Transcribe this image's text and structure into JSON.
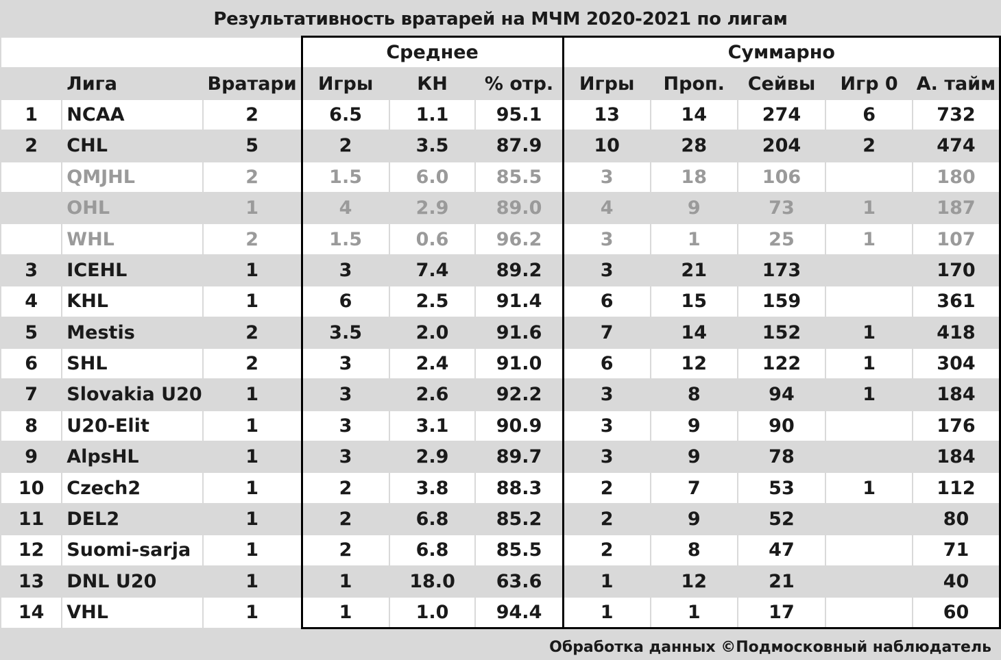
{
  "title": "Результативность вратарей на МЧМ 2020-2021  по лигам",
  "footer": "Обработка данных ©Подмосковный наблюдатель",
  "group_headers": {
    "avg": "Среднее",
    "sum": "Суммарно"
  },
  "columns": [
    "",
    "Лига",
    "Вратари",
    "Игры",
    "КН",
    "% отр.",
    "Игры",
    "Проп.",
    "Сейвы",
    "Игр 0",
    "А. тайм"
  ],
  "rows": [
    {
      "cells": [
        "1",
        "NCAA",
        "2",
        "6.5",
        "1.1",
        "95.1",
        "13",
        "14",
        "274",
        "6",
        "732"
      ],
      "muted": false
    },
    {
      "cells": [
        "2",
        "CHL",
        "5",
        "2",
        "3.5",
        "87.9",
        "10",
        "28",
        "204",
        "2",
        "474"
      ],
      "muted": false
    },
    {
      "cells": [
        "",
        "QMJHL",
        "2",
        "1.5",
        "6.0",
        "85.5",
        "3",
        "18",
        "106",
        "",
        "180"
      ],
      "muted": true
    },
    {
      "cells": [
        "",
        "OHL",
        "1",
        "4",
        "2.9",
        "89.0",
        "4",
        "9",
        "73",
        "1",
        "187"
      ],
      "muted": true
    },
    {
      "cells": [
        "",
        "WHL",
        "2",
        "1.5",
        "0.6",
        "96.2",
        "3",
        "1",
        "25",
        "1",
        "107"
      ],
      "muted": true
    },
    {
      "cells": [
        "3",
        "ICEHL",
        "1",
        "3",
        "7.4",
        "89.2",
        "3",
        "21",
        "173",
        "",
        "170"
      ],
      "muted": false
    },
    {
      "cells": [
        "4",
        "KHL",
        "1",
        "6",
        "2.5",
        "91.4",
        "6",
        "15",
        "159",
        "",
        "361"
      ],
      "muted": false
    },
    {
      "cells": [
        "5",
        "Mestis",
        "2",
        "3.5",
        "2.0",
        "91.6",
        "7",
        "14",
        "152",
        "1",
        "418"
      ],
      "muted": false
    },
    {
      "cells": [
        "6",
        "SHL",
        "2",
        "3",
        "2.4",
        "91.0",
        "6",
        "12",
        "122",
        "1",
        "304"
      ],
      "muted": false
    },
    {
      "cells": [
        "7",
        "Slovakia U20",
        "1",
        "3",
        "2.6",
        "92.2",
        "3",
        "8",
        "94",
        "1",
        "184"
      ],
      "muted": false
    },
    {
      "cells": [
        "8",
        "U20-Elit",
        "1",
        "3",
        "3.1",
        "90.9",
        "3",
        "9",
        "90",
        "",
        "176"
      ],
      "muted": false
    },
    {
      "cells": [
        "9",
        "AlpsHL",
        "1",
        "3",
        "2.9",
        "89.7",
        "3",
        "9",
        "78",
        "",
        "184"
      ],
      "muted": false
    },
    {
      "cells": [
        "10",
        "Czech2",
        "1",
        "2",
        "3.8",
        "88.3",
        "2",
        "7",
        "53",
        "1",
        "112"
      ],
      "muted": false
    },
    {
      "cells": [
        "11",
        "DEL2",
        "1",
        "2",
        "6.8",
        "85.2",
        "2",
        "9",
        "52",
        "",
        "80"
      ],
      "muted": false
    },
    {
      "cells": [
        "12",
        "Suomi-sarja",
        "1",
        "2",
        "6.8",
        "85.5",
        "2",
        "8",
        "47",
        "",
        "71"
      ],
      "muted": false
    },
    {
      "cells": [
        "13",
        "DNL U20",
        "1",
        "1",
        "18.0",
        "63.6",
        "1",
        "12",
        "21",
        "",
        "40"
      ],
      "muted": false
    },
    {
      "cells": [
        "14",
        "VHL",
        "1",
        "1",
        "1.0",
        "94.4",
        "1",
        "1",
        "17",
        "",
        "60"
      ],
      "muted": false
    }
  ]
}
